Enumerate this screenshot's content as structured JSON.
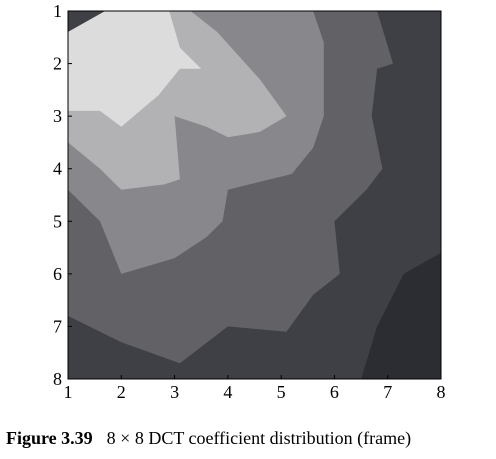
{
  "chart_data": {
    "type": "contour",
    "title": "",
    "xlabel": "",
    "ylabel": "",
    "x_ticks": [
      "1",
      "2",
      "3",
      "4",
      "5",
      "6",
      "7",
      "8"
    ],
    "y_ticks": [
      "1",
      "2",
      "3",
      "4",
      "5",
      "6",
      "7",
      "8"
    ],
    "xlim": [
      1,
      8
    ],
    "ylim": [
      1,
      8
    ],
    "y_axis": "reversed",
    "colormap": "gray",
    "grid": false,
    "legend": "none",
    "levels": [
      {
        "name": "level-1",
        "color": "#2b2d33"
      },
      {
        "name": "level-2",
        "color": "#3f4045"
      },
      {
        "name": "level-3",
        "color": "#626266"
      },
      {
        "name": "level-4",
        "color": "#88888c"
      },
      {
        "name": "level-5",
        "color": "#b2b2b5"
      },
      {
        "name": "level-6",
        "color": "#dcdcdd"
      }
    ],
    "contours": [
      {
        "level": 6,
        "points": [
          [
            1,
            1.4
          ],
          [
            1.7,
            1
          ],
          [
            2.9,
            1
          ],
          [
            3.1,
            1.7
          ],
          [
            3.5,
            2.1
          ],
          [
            3.1,
            2.1
          ],
          [
            2.7,
            2.6
          ],
          [
            2.0,
            3.2
          ],
          [
            1.6,
            2.9
          ],
          [
            1,
            2.9
          ]
        ]
      },
      {
        "level": 5,
        "points": [
          [
            1,
            1.4
          ],
          [
            1.7,
            1
          ],
          [
            3.3,
            1
          ],
          [
            3.8,
            1.4
          ],
          [
            4.6,
            2.3
          ],
          [
            5.1,
            3.0
          ],
          [
            4.6,
            3.3
          ],
          [
            4.0,
            3.4
          ],
          [
            3.6,
            3.2
          ],
          [
            3.0,
            3.0
          ],
          [
            3.1,
            4.2
          ],
          [
            2.8,
            4.3
          ],
          [
            2.0,
            4.4
          ],
          [
            1.6,
            4.0
          ],
          [
            1,
            3.5
          ]
        ]
      },
      {
        "level": 4,
        "points": [
          [
            1,
            1.4
          ],
          [
            1.7,
            1
          ],
          [
            5.6,
            1
          ],
          [
            5.8,
            1.6
          ],
          [
            5.8,
            3.0
          ],
          [
            5.6,
            3.6
          ],
          [
            5.2,
            4.1
          ],
          [
            4.0,
            4.4
          ],
          [
            3.9,
            5.0
          ],
          [
            3.6,
            5.3
          ],
          [
            3.0,
            5.7
          ],
          [
            2.0,
            6.0
          ],
          [
            1.6,
            5.0
          ],
          [
            1,
            4.4
          ]
        ]
      },
      {
        "level": 3,
        "points": [
          [
            1,
            1.4
          ],
          [
            1.7,
            1
          ],
          [
            6.8,
            1
          ],
          [
            7.1,
            2.0
          ],
          [
            6.8,
            2.1
          ],
          [
            6.7,
            3.0
          ],
          [
            6.9,
            4.0
          ],
          [
            6.6,
            4.4
          ],
          [
            6.0,
            5.0
          ],
          [
            6.1,
            6.0
          ],
          [
            5.6,
            6.4
          ],
          [
            5.1,
            7.1
          ],
          [
            4.0,
            7.0
          ],
          [
            3.1,
            7.7
          ],
          [
            2.0,
            7.3
          ],
          [
            1,
            6.8
          ]
        ]
      },
      {
        "level": 2,
        "points": [
          [
            1,
            1
          ],
          [
            8,
            1
          ],
          [
            8,
            5.6
          ],
          [
            7.3,
            6.0
          ],
          [
            7.0,
            6.6
          ],
          [
            6.8,
            7.0
          ],
          [
            6.5,
            8
          ],
          [
            1,
            8
          ]
        ]
      },
      {
        "level": 1,
        "points": [
          [
            6.5,
            8
          ],
          [
            6.8,
            7.0
          ],
          [
            7.3,
            6.0
          ],
          [
            8,
            5.6
          ],
          [
            8,
            8
          ]
        ]
      }
    ]
  },
  "caption": {
    "figure_number": "Figure 3.39",
    "text": "8 × 8 DCT coefficient distribution (frame)"
  }
}
